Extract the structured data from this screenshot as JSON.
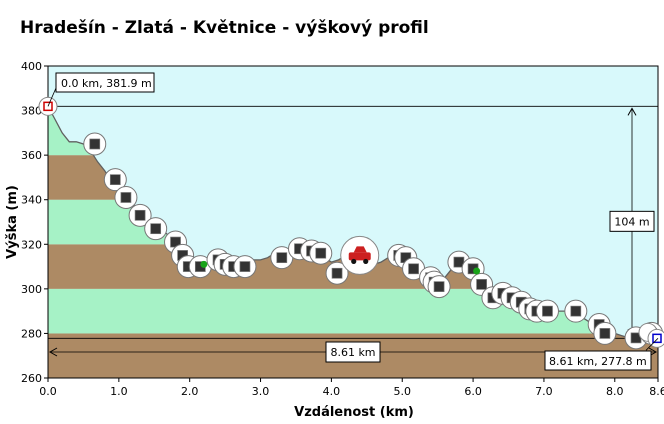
{
  "chart_data": {
    "type": "area",
    "title": "Hradešín - Zlatá - Květnice - výškový profil",
    "xlabel": "Vzdálenost  (km)",
    "ylabel": "Výška (m)",
    "xlim": [
      0,
      8.61
    ],
    "ylim": [
      260,
      400
    ],
    "x_ticks": [
      "0.0",
      "1.0",
      "2.0",
      "3.0",
      "4.0",
      "5.0",
      "6.0",
      "7.0",
      "8.0",
      "8.6"
    ],
    "x_tick_values": [
      0,
      1,
      2,
      3,
      4,
      5,
      6,
      7,
      8,
      8.61
    ],
    "y_ticks": [
      "260",
      "280",
      "300",
      "320",
      "340",
      "360",
      "380",
      "400"
    ],
    "y_tick_values": [
      260,
      280,
      300,
      320,
      340,
      360,
      380,
      400
    ],
    "band_colors": [
      "#ad8a64",
      "#a6f2c6"
    ],
    "plot_bg": "#d8f9fb",
    "series": [
      {
        "x": [
          0,
          0.1,
          0.2,
          0.3,
          0.4,
          0.5,
          0.6,
          0.7,
          0.8,
          0.9,
          1.0,
          1.1,
          1.2,
          1.3,
          1.4,
          1.5,
          1.6,
          1.7,
          1.8,
          1.9,
          2.0,
          2.1,
          2.2,
          2.3,
          2.4,
          2.5,
          2.6,
          2.7,
          2.8,
          2.9,
          3.0,
          3.1,
          3.2,
          3.3,
          3.4,
          3.5,
          3.6,
          3.7,
          3.8,
          3.9,
          4.0,
          4.1,
          4.2,
          4.3,
          4.4,
          4.5,
          4.6,
          4.7,
          4.8,
          4.9,
          5.0,
          5.1,
          5.2,
          5.3,
          5.4,
          5.5,
          5.6,
          5.7,
          5.8,
          5.9,
          6.0,
          6.1,
          6.2,
          6.3,
          6.4,
          6.5,
          6.6,
          6.7,
          6.8,
          6.9,
          7.0,
          7.1,
          7.2,
          7.3,
          7.4,
          7.5,
          7.6,
          7.7,
          7.8,
          7.9,
          8.0,
          8.1,
          8.2,
          8.3,
          8.4,
          8.5,
          8.61
        ],
        "y": [
          381.9,
          376,
          370,
          366,
          366,
          365,
          362,
          357,
          353,
          348,
          345,
          342,
          338,
          335,
          332,
          330,
          327,
          324,
          319,
          316,
          312,
          311,
          312,
          313,
          313,
          312,
          311,
          311,
          312,
          313,
          313,
          314,
          316,
          317,
          316,
          318,
          319,
          318,
          317,
          314,
          312,
          313,
          315,
          316,
          315,
          313,
          311,
          312,
          314,
          315,
          314,
          312,
          309,
          306,
          304,
          302,
          305,
          309,
          312,
          312,
          309,
          306,
          301,
          299,
          298,
          298,
          296,
          294,
          293,
          292,
          291,
          290,
          290,
          290,
          289,
          288,
          286,
          284,
          282,
          281,
          280,
          279,
          278,
          278,
          278,
          278,
          277.8
        ]
      }
    ],
    "waypoints": [
      {
        "x": 0.66,
        "y": 365
      },
      {
        "x": 0.95,
        "y": 349
      },
      {
        "x": 1.1,
        "y": 341
      },
      {
        "x": 1.3,
        "y": 333
      },
      {
        "x": 1.52,
        "y": 327
      },
      {
        "x": 1.8,
        "y": 321
      },
      {
        "x": 1.9,
        "y": 315
      },
      {
        "x": 1.98,
        "y": 310
      },
      {
        "x": 2.15,
        "y": 310
      },
      {
        "x": 2.4,
        "y": 313
      },
      {
        "x": 2.5,
        "y": 311
      },
      {
        "x": 2.62,
        "y": 310
      },
      {
        "x": 2.78,
        "y": 310
      },
      {
        "x": 3.3,
        "y": 314
      },
      {
        "x": 3.55,
        "y": 318
      },
      {
        "x": 3.72,
        "y": 317
      },
      {
        "x": 3.85,
        "y": 316
      },
      {
        "x": 4.08,
        "y": 307
      },
      {
        "x": 4.95,
        "y": 315
      },
      {
        "x": 5.05,
        "y": 314
      },
      {
        "x": 5.16,
        "y": 309
      },
      {
        "x": 5.4,
        "y": 305
      },
      {
        "x": 5.45,
        "y": 303
      },
      {
        "x": 5.52,
        "y": 301
      },
      {
        "x": 5.8,
        "y": 312
      },
      {
        "x": 6.0,
        "y": 309
      },
      {
        "x": 6.12,
        "y": 302
      },
      {
        "x": 6.28,
        "y": 296
      },
      {
        "x": 6.42,
        "y": 298
      },
      {
        "x": 6.55,
        "y": 296
      },
      {
        "x": 6.68,
        "y": 294
      },
      {
        "x": 6.8,
        "y": 291
      },
      {
        "x": 6.9,
        "y": 290
      },
      {
        "x": 7.05,
        "y": 290
      },
      {
        "x": 7.45,
        "y": 290
      },
      {
        "x": 7.78,
        "y": 284
      },
      {
        "x": 7.86,
        "y": 280
      },
      {
        "x": 8.3,
        "y": 278
      },
      {
        "x": 8.52,
        "y": 280
      }
    ],
    "green_dots": [
      {
        "x": 2.2,
        "y": 311
      },
      {
        "x": 6.05,
        "y": 308
      }
    ],
    "feature_icon": {
      "x": 4.4,
      "y": 315,
      "name": "car-icon"
    },
    "start_marker": {
      "x": 0,
      "y": 381.9,
      "color": "#cc0000"
    },
    "end_marker": {
      "x": 8.61,
      "y": 277.8,
      "color": "#0000cc"
    },
    "annotations": {
      "start_label": "0.0 km, 381.9 m",
      "end_label": "8.61 km, 277.8 m",
      "total_distance": "8.61 km",
      "elevation_difference": "104 m",
      "diff_top": 381.9,
      "diff_bottom": 277.8
    }
  }
}
